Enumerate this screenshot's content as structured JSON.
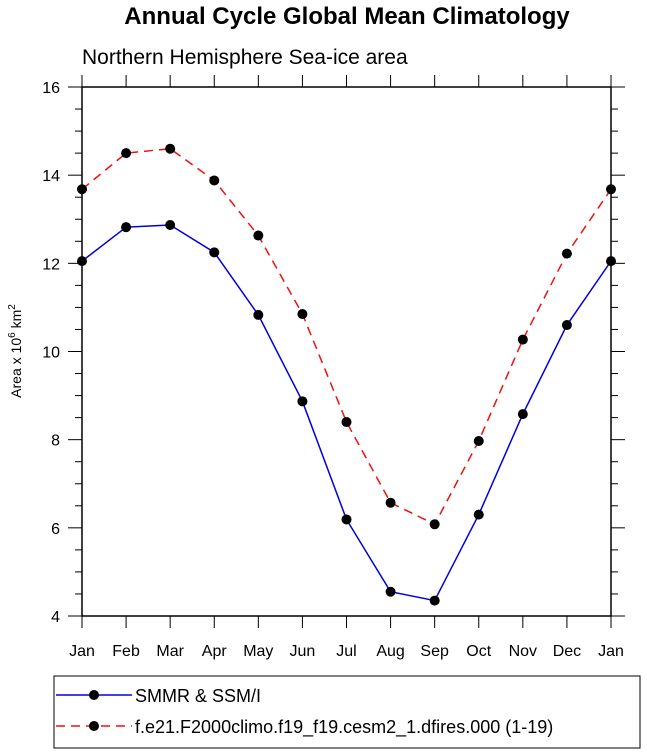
{
  "chart_data": {
    "type": "line",
    "title": "Annual Cycle Global Mean Climatology",
    "subtitle": "Northern Hemisphere Sea-ice area",
    "ylabel_prefix": "Area x 10",
    "ylabel_exp": "6",
    "ylabel_unit": "km",
    "ylabel_unit_exp": "2",
    "xlabel": "",
    "categories": [
      "Jan",
      "Feb",
      "Mar",
      "Apr",
      "May",
      "Jun",
      "Jul",
      "Aug",
      "Sep",
      "Oct",
      "Nov",
      "Dec",
      "Jan"
    ],
    "ylim": [
      4,
      16
    ],
    "yticks": [
      4,
      6,
      8,
      10,
      12,
      14,
      16
    ],
    "yticks_minor_step": 0.5,
    "series": [
      {
        "name": "SMMR & SSM/I",
        "color": "#0000dd",
        "dash": "solid",
        "values": [
          12.05,
          12.82,
          12.87,
          12.25,
          10.83,
          8.87,
          6.19,
          4.55,
          4.35,
          6.3,
          8.58,
          10.6,
          12.05
        ]
      },
      {
        "name": "f.e21.F2000climo.f19_f19.cesm2_1.dfires.000 (1-19)",
        "color": "#ee1111",
        "dash": "dashed",
        "values": [
          13.68,
          14.5,
          14.6,
          13.88,
          12.63,
          10.85,
          8.4,
          6.57,
          6.08,
          7.97,
          10.27,
          12.22,
          13.68
        ]
      }
    ],
    "grid": false,
    "legend_position": "bottom"
  }
}
